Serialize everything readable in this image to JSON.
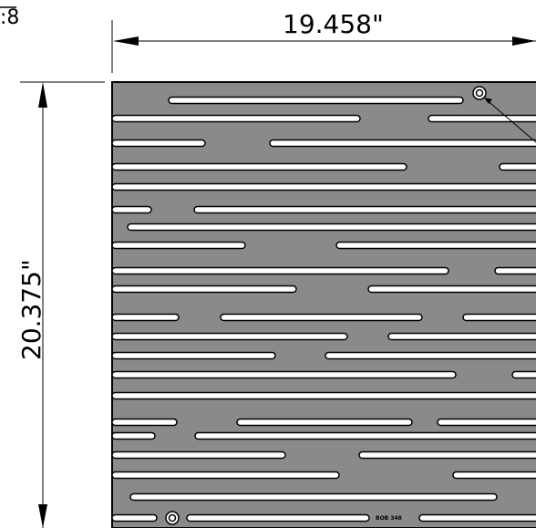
{
  "corner_label": ":8",
  "width_dimension": "19.458\"",
  "height_dimension": "20.375\"",
  "plate_marking": "BOB 348",
  "colors": {
    "plate_fill": "#8a8a8a",
    "slot_fill": "#ffffff",
    "line": "#000000"
  }
}
